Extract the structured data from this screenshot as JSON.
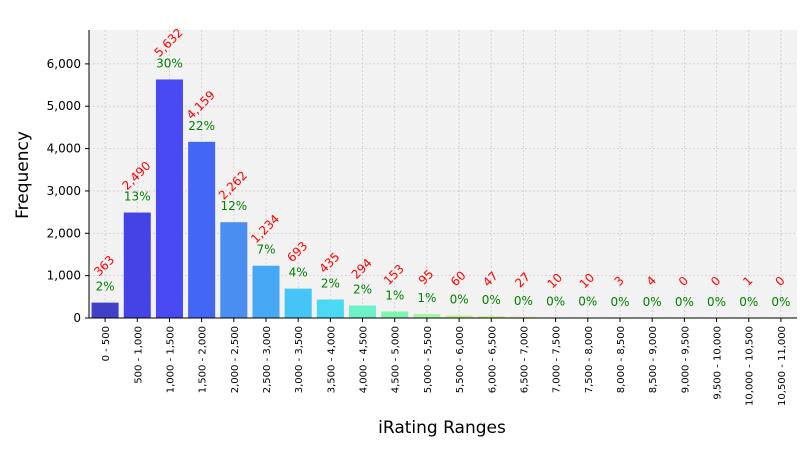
{
  "chart_data": {
    "type": "bar",
    "xlabel": "iRating Ranges",
    "ylabel": "Frequency",
    "ylim": [
      0,
      6800
    ],
    "yticks": [
      0,
      1000,
      2000,
      3000,
      4000,
      5000,
      6000
    ],
    "ytick_labels": [
      "0",
      "1,000",
      "2,000",
      "3,000",
      "4,000",
      "5,000",
      "6,000"
    ],
    "grid": true,
    "categories": [
      "0 - 500",
      "500 - 1,000",
      "1,000 - 1,500",
      "1,500 - 2,000",
      "2,000 - 2,500",
      "2,500 - 3,000",
      "3,000 - 3,500",
      "3,500 - 4,000",
      "4,000 - 4,500",
      "4,500 - 5,000",
      "5,000 - 5,500",
      "5,500 - 6,000",
      "6,000 - 6,500",
      "6,500 - 7,000",
      "7,000 - 7,500",
      "7,500 - 8,000",
      "8,000 - 8,500",
      "8,500 - 9,000",
      "9,000 - 9,500",
      "9,500 - 10,000",
      "10,000 - 10,500",
      "10,500 - 11,000"
    ],
    "values": [
      363,
      2490,
      5632,
      4159,
      2262,
      1234,
      693,
      435,
      294,
      153,
      95,
      60,
      47,
      27,
      10,
      10,
      3,
      4,
      0,
      0,
      1,
      0
    ],
    "value_labels": [
      "363",
      "2,490",
      "5,632",
      "4,159",
      "2,262",
      "1,234",
      "693",
      "435",
      "294",
      "153",
      "95",
      "60",
      "47",
      "27",
      "10",
      "10",
      "3",
      "4",
      "0",
      "0",
      "1",
      "0"
    ],
    "percent_labels": [
      "2%",
      "13%",
      "30%",
      "22%",
      "12%",
      "7%",
      "4%",
      "2%",
      "2%",
      "1%",
      "1%",
      "0%",
      "0%",
      "0%",
      "0%",
      "0%",
      "0%",
      "0%",
      "0%",
      "0%",
      "0%",
      "0%"
    ],
    "colors": {
      "bars": [
        "#3f3fc8",
        "#4444e6",
        "#4a4af5",
        "#4466f5",
        "#4a8ef2",
        "#47a9f5",
        "#44c4f7",
        "#4ad8f5",
        "#6ef0c8",
        "#7ef5b0",
        "#a6f5a6",
        "#c0f596",
        "#d0f590",
        "#ddf090",
        "#e8ec8c",
        "#f0e690",
        "#f5e090",
        "#f7dc8c",
        "#f7d58c",
        "#f7cc88",
        "#f7c088",
        "#f7b888"
      ],
      "value_label": "#ff0000",
      "percent_label": "#008000",
      "plot_background": "#f2f2f2",
      "grid": "#cccccc"
    }
  }
}
